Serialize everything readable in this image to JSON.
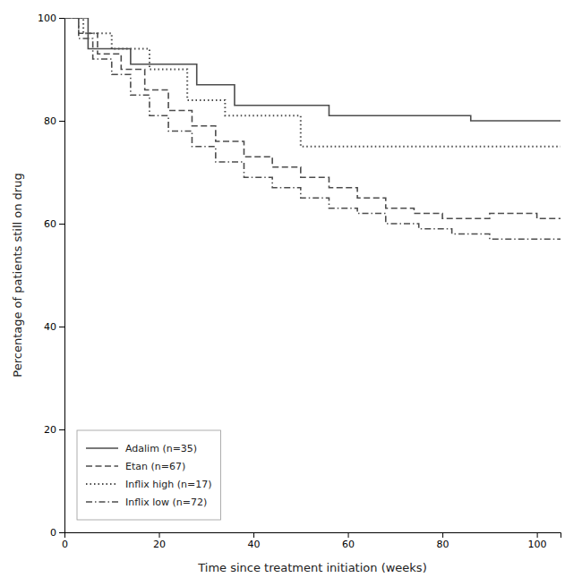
{
  "chart_data": {
    "type": "line",
    "xlabel": "Time since treatment initiation (weeks)",
    "ylabel": "Percentage of patients still on drug",
    "xlim": [
      0,
      105
    ],
    "ylim": [
      0,
      100
    ],
    "xticks": [
      0,
      20,
      40,
      60,
      80,
      100
    ],
    "yticks": [
      0,
      20,
      40,
      60,
      80,
      100
    ],
    "grid": false,
    "legend": "lower left",
    "series": [
      {
        "name": "Adalim (n=35)",
        "color": "#4d4d4d",
        "line_style": "solid",
        "x": [
          0,
          5,
          5,
          14,
          14,
          28,
          28,
          36,
          36,
          56,
          56,
          86,
          86,
          105
        ],
        "values": [
          100,
          100,
          94,
          94,
          91,
          91,
          87,
          87,
          83,
          83,
          81,
          81,
          80,
          80
        ]
      },
      {
        "name": "Etan (n=67)",
        "color": "#4d4d4d",
        "line_style": "dashed",
        "x": [
          0,
          3,
          3,
          7,
          7,
          12,
          12,
          17,
          17,
          22,
          22,
          27,
          27,
          32,
          32,
          38,
          38,
          44,
          44,
          50,
          50,
          56,
          56,
          62,
          62,
          68,
          68,
          74,
          74,
          80,
          80,
          90,
          90,
          100,
          100,
          105
        ],
        "values": [
          100,
          100,
          97,
          97,
          93,
          93,
          90,
          90,
          86,
          86,
          82,
          82,
          79,
          79,
          76,
          76,
          73,
          73,
          71,
          71,
          69,
          69,
          67,
          67,
          65,
          65,
          63,
          63,
          62,
          62,
          61,
          61,
          62,
          62,
          61,
          61
        ]
      },
      {
        "name": "Inflix high (n=17)",
        "color": "#4d4d4d",
        "line_style": "dotted",
        "x": [
          0,
          4,
          4,
          10,
          10,
          18,
          18,
          26,
          26,
          34,
          34,
          50,
          50,
          105
        ],
        "values": [
          100,
          100,
          97,
          97,
          94,
          94,
          90,
          90,
          84,
          84,
          81,
          81,
          75,
          75
        ]
      },
      {
        "name": "Inflix low (n=72)",
        "color": "#4d4d4d",
        "line_style": "dashdot",
        "x": [
          0,
          3,
          3,
          6,
          6,
          10,
          10,
          14,
          14,
          18,
          18,
          22,
          22,
          27,
          27,
          32,
          32,
          38,
          38,
          44,
          44,
          50,
          50,
          56,
          56,
          62,
          62,
          68,
          68,
          75,
          75,
          82,
          82,
          90,
          90,
          100,
          100,
          105
        ],
        "values": [
          100,
          100,
          96,
          96,
          92,
          92,
          89,
          89,
          85,
          85,
          81,
          81,
          78,
          78,
          75,
          75,
          72,
          72,
          69,
          69,
          67,
          67,
          65,
          65,
          63,
          63,
          62,
          62,
          60,
          60,
          59,
          59,
          58,
          58,
          57,
          57,
          57,
          57
        ]
      }
    ]
  }
}
